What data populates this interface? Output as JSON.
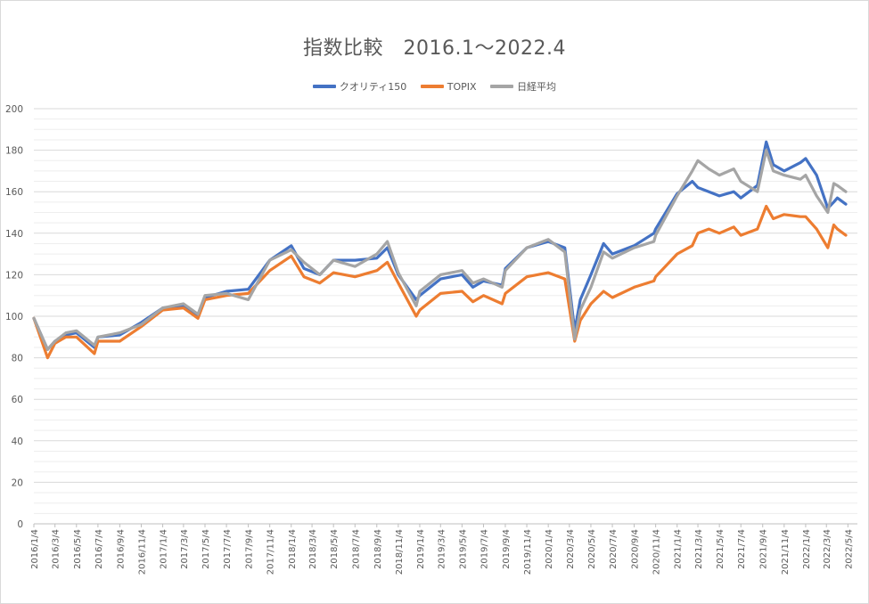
{
  "chart_data": {
    "type": "line",
    "title": "指数比較　2016.1～2022.4",
    "xlabel": "",
    "ylabel": "",
    "ylim": [
      0,
      200
    ],
    "yticks": [
      0,
      20,
      40,
      60,
      80,
      100,
      120,
      140,
      160,
      180,
      200
    ],
    "grid": true,
    "legend_position": "top",
    "x_tick_labels": [
      "2016/1/4",
      "2016/3/4",
      "2016/5/4",
      "2016/7/4",
      "2016/9/4",
      "2016/11/4",
      "2017/1/4",
      "2017/3/4",
      "2017/5/4",
      "2017/7/4",
      "2017/9/4",
      "2017/11/4",
      "2018/1/4",
      "2018/3/4",
      "2018/5/4",
      "2018/7/4",
      "2018/9/4",
      "2018/11/4",
      "2019/1/4",
      "2019/3/4",
      "2019/5/4",
      "2019/7/4",
      "2019/9/4",
      "2019/11/4",
      "2020/1/4",
      "2020/3/4",
      "2020/5/4",
      "2020/7/4",
      "2020/9/4",
      "2020/11/4",
      "2021/1/4",
      "2021/3/4",
      "2021/5/4",
      "2021/7/4",
      "2021/9/4",
      "2021/11/4",
      "2022/1/4",
      "2022/3/4",
      "2022/5/4"
    ],
    "x": [
      "2016/1/4",
      "2016/2/12",
      "2016/3/4",
      "2016/4/4",
      "2016/5/4",
      "2016/6/24",
      "2016/7/4",
      "2016/9/4",
      "2016/11/4",
      "2017/1/4",
      "2017/3/4",
      "2017/4/14",
      "2017/5/4",
      "2017/7/4",
      "2017/9/4",
      "2017/11/4",
      "2018/1/4",
      "2018/2/9",
      "2018/3/26",
      "2018/5/4",
      "2018/7/4",
      "2018/9/4",
      "2018/10/4",
      "2018/11/4",
      "2018/12/25",
      "2019/1/4",
      "2019/3/4",
      "2019/5/4",
      "2019/6/4",
      "2019/7/4",
      "2019/8/26",
      "2019/9/4",
      "2019/11/4",
      "2020/1/4",
      "2020/2/20",
      "2020/3/19",
      "2020/4/4",
      "2020/5/4",
      "2020/6/9",
      "2020/7/4",
      "2020/9/4",
      "2020/10/30",
      "2020/11/4",
      "2021/1/4",
      "2021/2/16",
      "2021/3/4",
      "2021/4/4",
      "2021/5/4",
      "2021/6/14",
      "2021/7/4",
      "2021/8/20",
      "2021/9/14",
      "2021/10/4",
      "2021/11/4",
      "2021/12/20",
      "2022/1/4",
      "2022/2/4",
      "2022/3/8",
      "2022/3/25",
      "2022/4/4",
      "2022/4/28"
    ],
    "series": [
      {
        "name": "クオリティ150",
        "color": "#4472c4",
        "values": [
          99,
          84,
          88,
          91,
          92,
          85,
          90,
          91,
          97,
          104,
          105,
          100,
          109,
          112,
          113,
          127,
          134,
          123,
          120,
          127,
          127,
          128,
          133,
          120,
          108,
          110,
          118,
          120,
          114,
          117,
          115,
          123,
          133,
          136,
          133,
          93,
          108,
          120,
          135,
          130,
          134,
          140,
          142,
          159,
          165,
          162,
          160,
          158,
          160,
          157,
          163,
          184,
          173,
          170,
          174,
          176,
          168,
          152,
          155,
          157,
          154
        ]
      },
      {
        "name": "TOPIX",
        "color": "#ed7d31",
        "values": [
          99,
          80,
          87,
          90,
          90,
          82,
          88,
          88,
          95,
          103,
          104,
          99,
          108,
          110,
          111,
          122,
          129,
          119,
          116,
          121,
          119,
          122,
          126,
          116,
          100,
          103,
          111,
          112,
          107,
          110,
          106,
          111,
          119,
          121,
          118,
          88,
          98,
          106,
          112,
          109,
          114,
          117,
          119,
          130,
          134,
          140,
          142,
          140,
          143,
          139,
          142,
          153,
          147,
          149,
          148,
          148,
          142,
          133,
          144,
          142,
          139
        ]
      },
      {
        "name": "日経平均",
        "color": "#a5a5a5",
        "values": [
          99,
          84,
          88,
          92,
          93,
          86,
          90,
          92,
          96,
          104,
          106,
          101,
          110,
          111,
          108,
          127,
          132,
          126,
          120,
          127,
          124,
          130,
          136,
          121,
          105,
          112,
          120,
          122,
          116,
          118,
          114,
          122,
          133,
          137,
          131,
          89,
          103,
          114,
          131,
          128,
          133,
          136,
          139,
          158,
          170,
          175,
          171,
          168,
          171,
          165,
          160,
          180,
          170,
          168,
          166,
          168,
          158,
          150,
          164,
          163,
          160
        ]
      }
    ]
  }
}
